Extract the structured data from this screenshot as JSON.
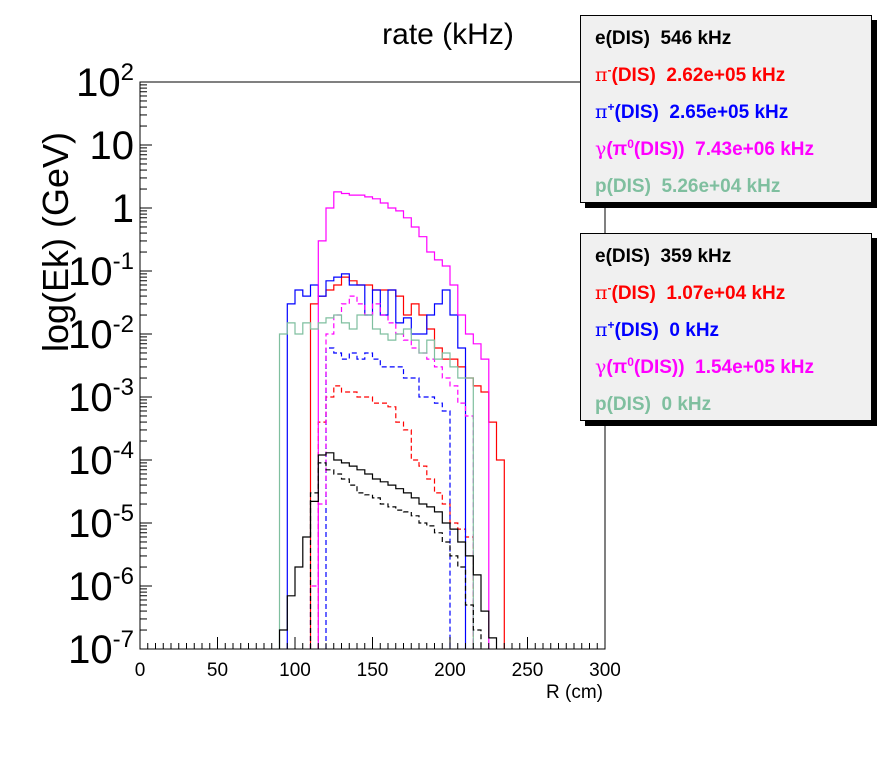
{
  "chart_data": {
    "type": "line",
    "title": "rate (kHz)",
    "xlabel": "R (cm)",
    "ylabel": "log(Ek) (GeV)",
    "xlim": [
      0,
      300
    ],
    "ylim": [
      1e-07,
      100
    ],
    "yscale": "log",
    "x_tick_labels": [
      "0",
      "50",
      "100",
      "150",
      "200",
      "250",
      "300"
    ],
    "y_tick_labels": [
      {
        "base": "10",
        "exp": "2"
      },
      {
        "base": "10",
        "exp": ""
      },
      {
        "base": "1",
        "exp": ""
      },
      {
        "base": "10",
        "exp": "-1"
      },
      {
        "base": "10",
        "exp": "-2"
      },
      {
        "base": "10",
        "exp": "-3"
      },
      {
        "base": "10",
        "exp": "-4"
      },
      {
        "base": "10",
        "exp": "-5"
      },
      {
        "base": "10",
        "exp": "-6"
      },
      {
        "base": "10",
        "exp": "-7"
      }
    ],
    "bin_width": 5,
    "series": [
      {
        "key": "pim_solid",
        "name": "π⁻(DIS)",
        "color": "#ff0000",
        "dash": false,
        "x_start": 110,
        "values": [
          0.03,
          0.04,
          0.05,
          0.06,
          0.08,
          0.07,
          0.06,
          0.06,
          0.05,
          0.05,
          0.05,
          0.04,
          0.02,
          0.03,
          0.02,
          0.012,
          0.006,
          0.004,
          0.004,
          0.003,
          0.002,
          0.0015,
          0.0012,
          0.0004,
          0.0001
        ]
      },
      {
        "key": "pim_dashed",
        "name": "",
        "color": "#ff0000",
        "dash": true,
        "x_start": 115,
        "values": [
          0.0004,
          0.001,
          0.0015,
          0.0012,
          0.0012,
          0.001,
          0.001,
          0.0008,
          0.0008,
          0.0007,
          0.0004,
          0.0003,
          0.0001,
          8e-05,
          5e-05,
          3e-05,
          2e-05,
          1e-05,
          8e-06,
          6e-06
        ]
      },
      {
        "key": "pip_solid",
        "name": "π⁺(DIS)",
        "color": "#0000ff",
        "dash": false,
        "x_start": 95,
        "values": [
          0.03,
          0.05,
          0.04,
          0.06,
          0.04,
          0.07,
          0.08,
          0.09,
          0.06,
          0.06,
          0.02,
          0.05,
          0.02,
          0.05,
          0.015,
          0.018,
          0.01,
          0.01,
          0.02,
          0.03,
          0.05,
          0.02,
          0.006
        ]
      },
      {
        "key": "pip_dashed",
        "name": "",
        "color": "#0000ff",
        "dash": true,
        "x_start": 120,
        "values": [
          0.006,
          0.005,
          0.004,
          0.005,
          0.004,
          0.005,
          0.004,
          0.003,
          0.003,
          0.003,
          0.002,
          0.002,
          0.001,
          0.001,
          0.0008,
          0.0006
        ]
      },
      {
        "key": "gam_solid",
        "name": "γ(π⁰(DIS))",
        "color": "#ff00ff",
        "dash": false,
        "x_start": 115,
        "values": [
          0.3,
          1.0,
          1.8,
          1.7,
          1.6,
          1.6,
          1.5,
          1.4,
          1.2,
          1.0,
          0.9,
          0.7,
          0.5,
          0.35,
          0.2,
          0.15,
          0.12,
          0.06,
          0.02,
          0.01,
          0.007,
          0.004
        ]
      },
      {
        "key": "gam_dashed",
        "name": "",
        "color": "#ff00ff",
        "dash": true,
        "x_start": 110,
        "values": [
          1e-06,
          2e-05,
          0.01,
          0.02,
          0.03,
          0.04,
          0.03,
          0.02,
          0.03,
          0.02,
          0.015,
          0.01,
          0.008,
          0.006,
          0.005,
          0.004,
          0.003,
          0.002,
          0.0015,
          0.0008,
          0.0005
        ]
      },
      {
        "key": "p_solid",
        "name": "p(DIS)",
        "color": "#7fbf9f",
        "dash": false,
        "x_start": 90,
        "values": [
          0.01,
          0.015,
          0.01,
          0.015,
          0.012,
          0.015,
          0.018,
          0.02,
          0.015,
          0.012,
          0.02,
          0.02,
          0.012,
          0.01,
          0.008,
          0.01,
          0.012,
          0.008,
          0.005,
          0.008,
          0.004,
          0.005,
          0.003,
          0.002,
          0.002
        ]
      },
      {
        "key": "e_solid",
        "name": "e(DIS)",
        "color": "#000000",
        "dash": false,
        "x_start": 90,
        "values": [
          2e-07,
          7e-07,
          2e-06,
          6e-06,
          2.2e-05,
          0.00012,
          0.00013,
          0.0001,
          9e-05,
          8e-05,
          7e-05,
          6e-05,
          5e-05,
          4.5e-05,
          4e-05,
          3.5e-05,
          3e-05,
          2.5e-05,
          2e-05,
          1.8e-05,
          1.5e-05,
          1e-05,
          8e-06,
          5e-06,
          3e-06,
          1.5e-06,
          4e-07,
          1.5e-07
        ]
      },
      {
        "key": "e_dashed",
        "name": "",
        "color": "#000000",
        "dash": true,
        "x_start": 110,
        "values": [
          3e-05,
          9e-05,
          7e-05,
          6e-05,
          5e-05,
          4e-05,
          3e-05,
          2.8e-05,
          2.5e-05,
          2e-05,
          1.8e-05,
          1.6e-05,
          1.5e-05,
          1.3e-05,
          1e-05,
          9e-06,
          7e-06,
          5e-06,
          3e-06,
          2e-06,
          5e-07,
          2e-07
        ]
      }
    ]
  },
  "legend_top": [
    {
      "base": "e(DIS)",
      "sup": "",
      "tail": "",
      "value": "546 kHz",
      "color": "#000000",
      "gamma": false
    },
    {
      "base": "π",
      "sup": "-",
      "tail": "(DIS)",
      "value": "2.62e+05 kHz",
      "color": "#ff0000",
      "gamma": false
    },
    {
      "base": "π",
      "sup": "+",
      "tail": "(DIS)",
      "value": "2.65e+05 kHz",
      "color": "#0000ff",
      "gamma": false
    },
    {
      "base": "γ(π",
      "sup": "0",
      "tail": "(DIS))",
      "value": "7.43e+06 kHz",
      "color": "#ff00ff",
      "gamma": true
    },
    {
      "base": "p(DIS)",
      "sup": "",
      "tail": "",
      "value": "5.26e+04 kHz",
      "color": "#7fbf9f",
      "gamma": false
    }
  ],
  "legend_bottom": [
    {
      "base": "e(DIS)",
      "sup": "",
      "tail": "",
      "value": "359 kHz",
      "color": "#000000",
      "gamma": false
    },
    {
      "base": "π",
      "sup": "-",
      "tail": "(DIS)",
      "value": "1.07e+04 kHz",
      "color": "#ff0000",
      "gamma": false
    },
    {
      "base": "π",
      "sup": "+",
      "tail": "(DIS)",
      "value": "0 kHz",
      "color": "#0000ff",
      "gamma": false
    },
    {
      "base": "γ(π",
      "sup": "0",
      "tail": "(DIS))",
      "value": "1.54e+05 kHz",
      "color": "#ff00ff",
      "gamma": true
    },
    {
      "base": "p(DIS)",
      "sup": "",
      "tail": "",
      "value": "0 kHz",
      "color": "#7fbf9f",
      "gamma": false
    }
  ]
}
